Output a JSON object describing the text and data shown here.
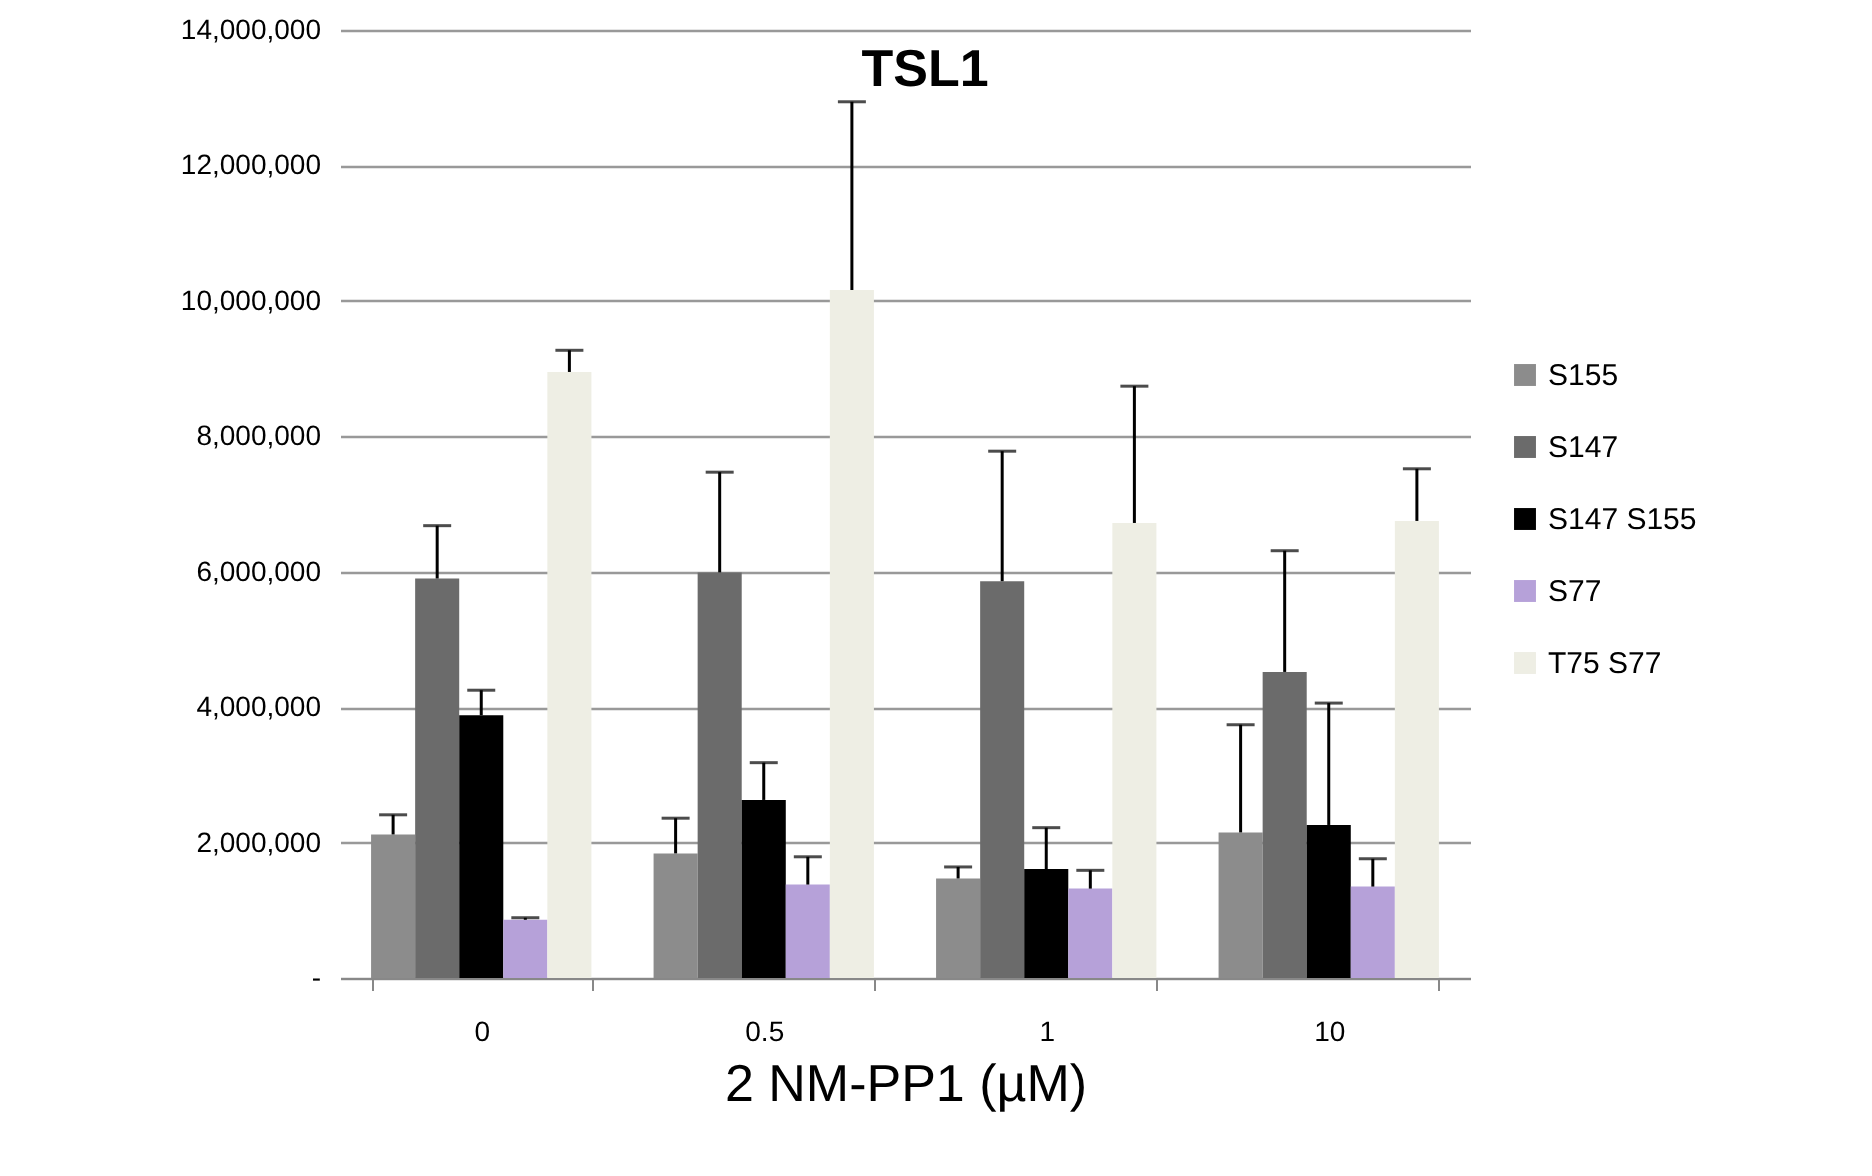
{
  "chart_data": {
    "type": "bar",
    "title": "TSL1",
    "xlabel": "2 NM-PP1 (µM)",
    "categories": [
      "0",
      "0.5",
      "1",
      "10"
    ],
    "series": [
      {
        "name": "S155",
        "color": "#8c8c8c",
        "values": [
          2120000,
          1840000,
          1470000,
          2150000
        ],
        "errors": [
          [
            2120000,
            2410000
          ],
          [
            1840000,
            2360000
          ],
          [
            1470000,
            1640000
          ],
          [
            2150000,
            3740000
          ]
        ]
      },
      {
        "name": "S147",
        "color": "#6b6b6b",
        "values": [
          5900000,
          5990000,
          5860000,
          4520000
        ],
        "errors": [
          [
            5900000,
            6680000
          ],
          [
            5990000,
            7470000
          ],
          [
            5860000,
            7780000
          ],
          [
            4520000,
            6310000
          ]
        ]
      },
      {
        "name": "S147 S155",
        "color": "#000000",
        "values": [
          3880000,
          2630000,
          1610000,
          2260000
        ],
        "errors": [
          [
            3880000,
            4250000
          ],
          [
            2630000,
            3180000
          ],
          [
            1610000,
            2220000
          ],
          [
            2260000,
            4060000
          ]
        ]
      },
      {
        "name": "S77",
        "color": "#b6a1d9",
        "values": [
          860000,
          1380000,
          1320000,
          1350000
        ],
        "errors": [
          [
            860000,
            890000
          ],
          [
            1380000,
            1790000
          ],
          [
            1320000,
            1590000
          ],
          [
            1350000,
            1760000
          ]
        ]
      },
      {
        "name": "T75 S77",
        "color": "#eeeee4",
        "values": [
          8950000,
          10160000,
          6720000,
          6750000
        ],
        "errors": [
          [
            8950000,
            9270000
          ],
          [
            10160000,
            12940000
          ],
          [
            6720000,
            8740000
          ],
          [
            6750000,
            7520000
          ]
        ]
      }
    ],
    "ylim": [
      0,
      14000000
    ],
    "yticks": [
      {
        "value": 0,
        "label": "-"
      },
      {
        "value": 2000000,
        "label": "2,000,000"
      },
      {
        "value": 4000000,
        "label": "4,000,000"
      },
      {
        "value": 6000000,
        "label": "6,000,000"
      },
      {
        "value": 8000000,
        "label": "8,000,000"
      },
      {
        "value": 10000000,
        "label": "10,000,000"
      },
      {
        "value": 12000000,
        "label": "12,000,000"
      },
      {
        "value": 14000000,
        "label": "14,000,000"
      }
    ],
    "grid": "y",
    "legend": "right"
  }
}
